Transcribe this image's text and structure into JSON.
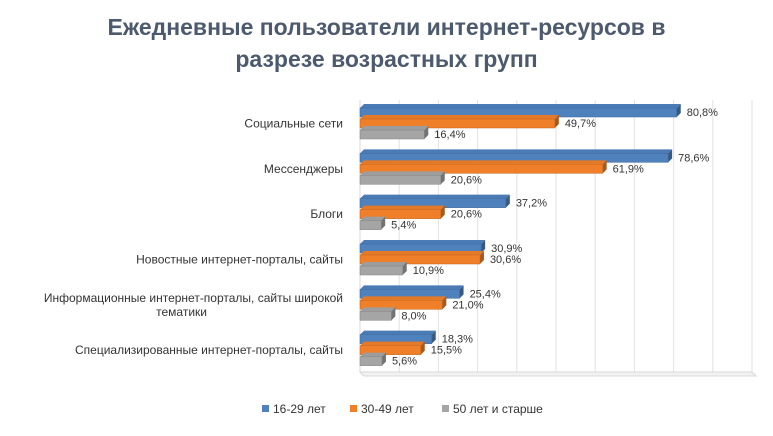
{
  "chart_data": {
    "type": "bar",
    "orientation": "horizontal",
    "title_lines": [
      "Ежедневные пользователи интернет-ресурсов в",
      "разрезе возрастных групп"
    ],
    "categories": [
      [
        "Социальные сети"
      ],
      [
        "Мессенджеры"
      ],
      [
        "Блоги"
      ],
      [
        "Новостные интернет-порталы,  сайты"
      ],
      [
        "Информационные интернет-порталы,  сайты широкой",
        "тематики"
      ],
      [
        "Специализированные интернет-порталы,  сайты"
      ]
    ],
    "series": [
      {
        "name": "16-29 лет",
        "color": "#4f81bd",
        "values": [
          80.8,
          78.6,
          37.2,
          30.9,
          25.4,
          18.3
        ],
        "labels": [
          "80,8%",
          "78,6%",
          "37,2%",
          "30,9%",
          "25,4%",
          "18,3%"
        ]
      },
      {
        "name": "30-49 лет",
        "color": "#f07f29",
        "values": [
          49.7,
          61.9,
          20.6,
          30.6,
          21.0,
          15.5
        ],
        "labels": [
          "49,7%",
          "61,9%",
          "20,6%",
          "30,6%",
          "21,0%",
          "15,5%"
        ]
      },
      {
        "name": "50  лет и старше",
        "color": "#a5a5a5",
        "values": [
          16.4,
          20.6,
          5.4,
          10.9,
          8.0,
          5.6
        ],
        "labels": [
          "16,4%",
          "20,6%",
          "5,4%",
          "10,9%",
          "8,0%",
          "5,6%"
        ]
      }
    ],
    "xlim": [
      0,
      100
    ],
    "grid": true,
    "legend": "bottom"
  }
}
